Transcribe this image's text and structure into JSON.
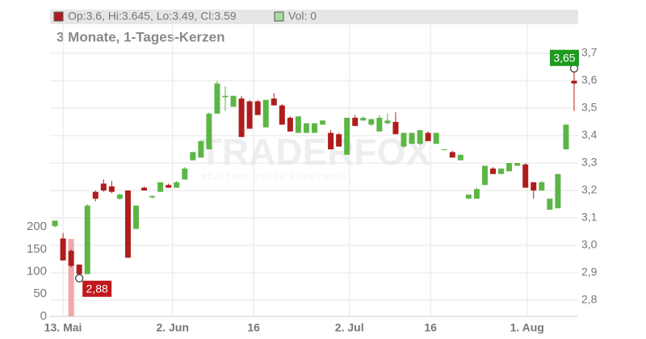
{
  "chart_data": {
    "type": "candlestick",
    "legend": {
      "price": "Op:3.6, Hi:3.645, Lo:3.49, Cl:3.59",
      "volume": "Vol: 0"
    },
    "subtitle": "3 Monate, 1-Tages-Kerzen",
    "watermark": {
      "brand": "TRADERFOX",
      "tagline": "REALTIME STOCK SCREENING"
    },
    "up_color": "#5cb646",
    "down_color": "#b01c1c",
    "volume_color": "#f2a7ab",
    "open": [
      3.07,
      3.025,
      2.98,
      2.93,
      2.895,
      3.195,
      3.225,
      3.215,
      3.17,
      3.2,
      3.06,
      3.21,
      3.175,
      3.195,
      3.22,
      3.21,
      3.24,
      3.31,
      3.32,
      3.35,
      3.48,
      3.54,
      3.505,
      3.535,
      3.525,
      3.525,
      3.43,
      3.535,
      3.51,
      3.465,
      3.41,
      3.41,
      3.41,
      3.44,
      3.41,
      3.405,
      3.33,
      3.465,
      3.455,
      3.44,
      3.415,
      3.445,
      3.45,
      3.36,
      3.37,
      3.37,
      3.41,
      3.37,
      3.35,
      3.34,
      3.31,
      3.17,
      3.17,
      3.22,
      3.28,
      3.26,
      3.27,
      3.29,
      3.295,
      3.23,
      3.2,
      3.13,
      3.135,
      3.35,
      3.6
    ],
    "high": [
      3.09,
      3.045,
      2.985,
      2.93,
      3.15,
      3.2,
      3.24,
      3.235,
      3.19,
      3.2,
      3.145,
      3.215,
      3.18,
      3.23,
      3.225,
      3.235,
      3.285,
      3.34,
      3.38,
      3.485,
      3.6,
      3.58,
      3.545,
      3.545,
      3.53,
      3.53,
      3.53,
      3.555,
      3.515,
      3.47,
      3.47,
      3.445,
      3.445,
      3.455,
      3.42,
      3.41,
      3.465,
      3.475,
      3.47,
      3.46,
      3.475,
      3.48,
      3.485,
      3.41,
      3.41,
      3.42,
      3.415,
      3.41,
      3.35,
      3.345,
      3.33,
      3.185,
      3.21,
      3.29,
      3.285,
      3.28,
      3.3,
      3.3,
      3.3,
      3.23,
      3.235,
      3.17,
      3.26,
      3.44,
      3.645
    ],
    "low": [
      3.065,
      2.945,
      2.92,
      2.88,
      2.895,
      3.16,
      3.195,
      3.19,
      3.165,
      2.955,
      3.06,
      3.2,
      3.17,
      3.195,
      3.21,
      3.21,
      3.24,
      3.31,
      3.32,
      3.35,
      3.48,
      3.49,
      3.505,
      3.395,
      3.425,
      3.475,
      3.43,
      3.51,
      3.44,
      3.415,
      3.41,
      3.41,
      3.41,
      3.44,
      3.35,
      3.36,
      3.33,
      3.435,
      3.455,
      3.435,
      3.415,
      3.44,
      3.405,
      3.355,
      3.37,
      3.365,
      3.38,
      3.37,
      3.35,
      3.32,
      3.31,
      3.17,
      3.17,
      3.22,
      3.26,
      3.26,
      3.27,
      3.29,
      3.21,
      3.17,
      3.2,
      3.13,
      3.135,
      3.35,
      3.49
    ],
    "close": [
      3.09,
      2.945,
      2.925,
      2.895,
      3.145,
      3.17,
      3.2,
      3.195,
      3.185,
      2.955,
      3.145,
      3.2,
      3.18,
      3.23,
      3.21,
      3.23,
      3.28,
      3.34,
      3.38,
      3.48,
      3.59,
      3.545,
      3.545,
      3.395,
      3.425,
      3.475,
      3.53,
      3.51,
      3.44,
      3.415,
      3.47,
      3.445,
      3.445,
      3.455,
      3.35,
      3.36,
      3.465,
      3.435,
      3.465,
      3.46,
      3.465,
      3.455,
      3.405,
      3.41,
      3.41,
      3.42,
      3.38,
      3.41,
      3.35,
      3.32,
      3.33,
      3.185,
      3.205,
      3.29,
      3.26,
      3.28,
      3.3,
      3.3,
      3.21,
      3.2,
      3.23,
      3.17,
      3.26,
      3.44,
      3.59
    ],
    "volume": [
      0,
      0,
      173,
      0,
      0,
      0,
      0,
      0,
      0,
      0,
      0,
      0,
      0,
      0,
      0,
      0,
      0,
      0,
      0,
      0,
      0,
      0,
      0,
      0,
      0,
      0,
      0,
      0,
      0,
      0,
      0,
      0,
      0,
      0,
      0,
      0,
      0,
      0,
      0,
      0,
      0,
      0,
      0,
      0,
      0,
      0,
      0,
      0,
      0,
      0,
      0,
      0,
      0,
      0,
      0,
      0,
      0,
      0,
      0,
      0,
      0,
      0,
      0,
      0,
      0
    ],
    "xlim": [
      -0.6,
      64.5
    ],
    "xticks": [
      {
        "value": 1,
        "label": "13. Mai"
      },
      {
        "value": 14.5,
        "label": "2. Jun"
      },
      {
        "value": 24.5,
        "label": "16"
      },
      {
        "value": 36.3,
        "label": "2. Jul"
      },
      {
        "value": 46.3,
        "label": "16"
      },
      {
        "value": 58.2,
        "label": "1. Aug"
      }
    ],
    "ylim": [
      2.741,
      3.859
    ],
    "yticks": [
      {
        "value": 2.8,
        "label": "2,8"
      },
      {
        "value": 2.9,
        "label": "2,9"
      },
      {
        "value": 3.0,
        "label": "3,0"
      },
      {
        "value": 3.1,
        "label": "3,1"
      },
      {
        "value": 3.2,
        "label": "3,2"
      },
      {
        "value": 3.3,
        "label": "3,3"
      },
      {
        "value": 3.4,
        "label": "3,4"
      },
      {
        "value": 3.5,
        "label": "3,5"
      },
      {
        "value": 3.6,
        "label": "3,6"
      },
      {
        "value": 3.7,
        "label": "3,7"
      }
    ],
    "vlim": [
      0,
      685
    ],
    "vticks": [
      0,
      50,
      100,
      150,
      200
    ],
    "annotations": [
      {
        "index": 64,
        "value": 3.645,
        "label": "3,65",
        "color": "#1e9a1e"
      },
      {
        "index": 3,
        "value": 2.88,
        "label": "2,88",
        "color": "#c0181e"
      }
    ],
    "grid": true
  }
}
